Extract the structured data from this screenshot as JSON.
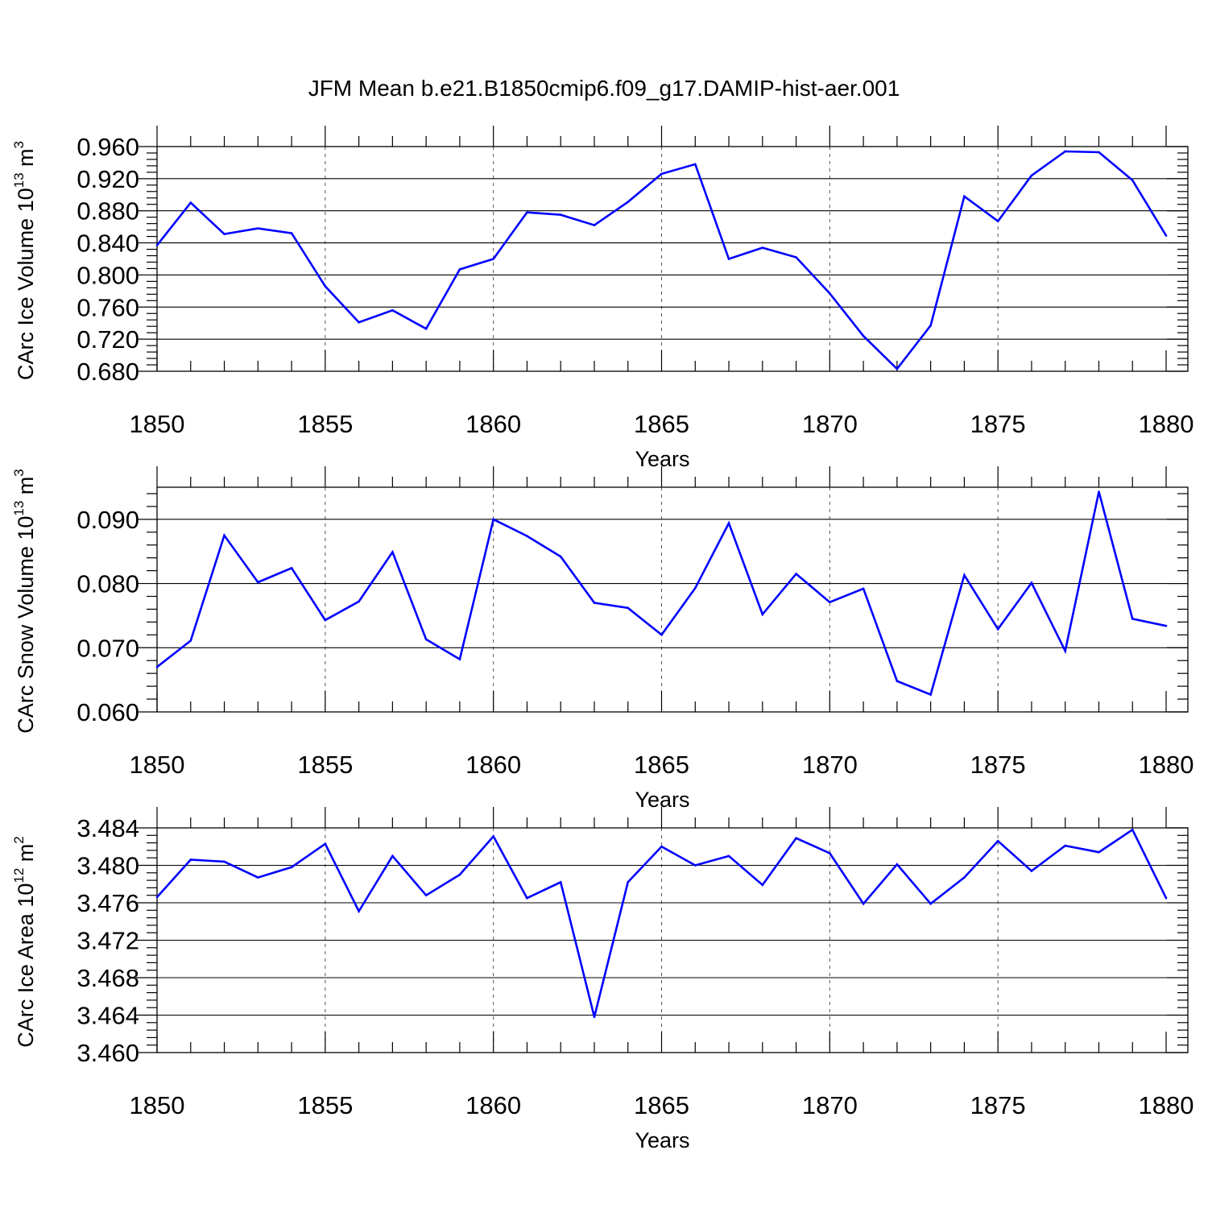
{
  "title": "JFM Mean b.e21.B1850cmip6.f09_g17.DAMIP-hist-aer.001",
  "colors": {
    "line": "#0000ff",
    "axis": "#000000",
    "grid": "#555555"
  },
  "chart_data": [
    {
      "type": "line",
      "name": "ice-volume",
      "ylabel_main": "CArc Ice Volume 10",
      "ylabel_exp": "13",
      "ylabel_unit": " m",
      "ylabel_unit_exp": "3",
      "xlabel": "Years",
      "xlim": [
        1850,
        1880
      ],
      "ylim": [
        0.68,
        0.96
      ],
      "grid": "vertical dashed at major x ticks",
      "x_ticks": [
        "1850",
        "1855",
        "1860",
        "1865",
        "1870",
        "1875",
        "1880"
      ],
      "y_ticks": [
        "0.680",
        "0.720",
        "0.760",
        "0.800",
        "0.840",
        "0.880",
        "0.920",
        "0.960"
      ],
      "x": [
        1850,
        1851,
        1852,
        1853,
        1854,
        1855,
        1856,
        1857,
        1858,
        1859,
        1860,
        1861,
        1862,
        1863,
        1864,
        1865,
        1866,
        1867,
        1868,
        1869,
        1870,
        1871,
        1872,
        1873,
        1874,
        1875,
        1876,
        1877,
        1878,
        1879,
        1880
      ],
      "values": [
        0.837,
        0.89,
        0.851,
        0.858,
        0.852,
        0.786,
        0.741,
        0.756,
        0.733,
        0.807,
        0.82,
        0.878,
        0.875,
        0.862,
        0.891,
        0.926,
        0.938,
        0.82,
        0.834,
        0.822,
        0.777,
        0.724,
        0.683,
        0.737,
        0.898,
        0.867,
        0.924,
        0.954,
        0.953,
        0.918,
        0.849
      ]
    },
    {
      "type": "line",
      "name": "snow-volume",
      "ylabel_main": "CArc Snow Volume 10",
      "ylabel_exp": "13",
      "ylabel_unit": " m",
      "ylabel_unit_exp": "3",
      "xlabel": "Years",
      "xlim": [
        1850,
        1880
      ],
      "ylim": [
        0.06,
        0.095
      ],
      "grid": "vertical dashed at major x ticks",
      "x_ticks": [
        "1850",
        "1855",
        "1860",
        "1865",
        "1870",
        "1875",
        "1880"
      ],
      "y_ticks": [
        "0.060",
        "0.070",
        "0.080",
        "0.090"
      ],
      "x": [
        1850,
        1851,
        1852,
        1853,
        1854,
        1855,
        1856,
        1857,
        1858,
        1859,
        1860,
        1861,
        1862,
        1863,
        1864,
        1865,
        1866,
        1867,
        1868,
        1869,
        1870,
        1871,
        1872,
        1873,
        1874,
        1875,
        1876,
        1877,
        1878,
        1879,
        1880
      ],
      "values": [
        0.067,
        0.0711,
        0.0875,
        0.0802,
        0.0824,
        0.0743,
        0.0772,
        0.0849,
        0.0713,
        0.0682,
        0.09,
        0.0874,
        0.0842,
        0.077,
        0.0762,
        0.072,
        0.0793,
        0.0894,
        0.0752,
        0.0815,
        0.0771,
        0.0792,
        0.0648,
        0.0627,
        0.0813,
        0.0729,
        0.0801,
        0.0695,
        0.0943,
        0.0745,
        0.0734
      ]
    },
    {
      "type": "line",
      "name": "ice-area",
      "ylabel_main": "CArc Ice Area 10",
      "ylabel_exp": "12",
      "ylabel_unit": " m",
      "ylabel_unit_exp": "2",
      "xlabel": "Years",
      "xlim": [
        1850,
        1880
      ],
      "ylim": [
        3.46,
        3.484
      ],
      "grid": "vertical dashed at major x ticks",
      "x_ticks": [
        "1850",
        "1855",
        "1860",
        "1865",
        "1870",
        "1875",
        "1880"
      ],
      "y_ticks": [
        "3.460",
        "3.464",
        "3.468",
        "3.472",
        "3.476",
        "3.480",
        "3.484"
      ],
      "x": [
        1850,
        1851,
        1852,
        1853,
        1854,
        1855,
        1856,
        1857,
        1858,
        1859,
        1860,
        1861,
        1862,
        1863,
        1864,
        1865,
        1866,
        1867,
        1868,
        1869,
        1870,
        1871,
        1872,
        1873,
        1874,
        1875,
        1876,
        1877,
        1878,
        1879,
        1880
      ],
      "values": [
        3.4766,
        3.4806,
        3.4804,
        3.4787,
        3.4798,
        3.4823,
        3.4751,
        3.481,
        3.4768,
        3.479,
        3.4831,
        3.4765,
        3.4782,
        3.4638,
        3.4782,
        3.482,
        3.48,
        3.481,
        3.4779,
        3.4829,
        3.4813,
        3.4759,
        3.4801,
        3.4759,
        3.4787,
        3.4826,
        3.4794,
        3.4821,
        3.4814,
        3.4838,
        3.4765
      ]
    }
  ]
}
